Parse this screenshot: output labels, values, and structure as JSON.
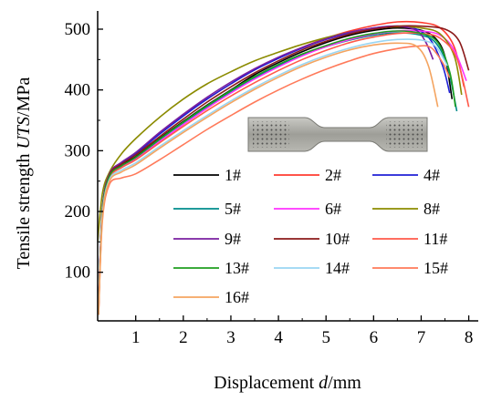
{
  "chart_data": {
    "type": "line",
    "title": "",
    "xlabel": {
      "prefix": "Displacement ",
      "italic": "d",
      "suffix": "/mm"
    },
    "ylabel": {
      "prefix": "Tensile strength ",
      "italic": "UTS",
      "suffix": "/MPa"
    },
    "xlim": [
      0.2,
      8.2
    ],
    "ylim": [
      20,
      530
    ],
    "xticks": [
      1,
      2,
      3,
      4,
      5,
      6,
      7,
      8
    ],
    "yticks": [
      100,
      200,
      300,
      400,
      500
    ],
    "grid": false,
    "legend_position": "center-right",
    "series": [
      {
        "name": "1#",
        "color": "#000000",
        "points": [
          [
            0.22,
            40
          ],
          [
            0.3,
            200
          ],
          [
            0.45,
            260
          ],
          [
            0.7,
            277
          ],
          [
            1,
            290
          ],
          [
            1.5,
            320
          ],
          [
            2,
            348
          ],
          [
            2.5,
            375
          ],
          [
            3,
            400
          ],
          [
            3.5,
            425
          ],
          [
            4,
            445
          ],
          [
            4.5,
            463
          ],
          [
            5,
            478
          ],
          [
            5.5,
            490
          ],
          [
            6,
            498
          ],
          [
            6.5,
            502
          ],
          [
            7,
            498
          ],
          [
            7.3,
            485
          ],
          [
            7.5,
            455
          ],
          [
            7.65,
            385
          ]
        ]
      },
      {
        "name": "2#",
        "color": "#ff3b30",
        "points": [
          [
            0.22,
            35
          ],
          [
            0.3,
            195
          ],
          [
            0.45,
            262
          ],
          [
            0.7,
            280
          ],
          [
            1,
            295
          ],
          [
            1.5,
            328
          ],
          [
            2,
            358
          ],
          [
            2.5,
            385
          ],
          [
            3,
            410
          ],
          [
            3.5,
            433
          ],
          [
            4,
            453
          ],
          [
            4.5,
            470
          ],
          [
            5,
            485
          ],
          [
            5.5,
            497
          ],
          [
            6,
            506
          ],
          [
            6.5,
            512
          ],
          [
            7,
            511
          ],
          [
            7.4,
            502
          ],
          [
            7.7,
            470
          ],
          [
            7.9,
            405
          ]
        ]
      },
      {
        "name": "4#",
        "color": "#1f1fd6",
        "points": [
          [
            0.22,
            45
          ],
          [
            0.3,
            205
          ],
          [
            0.45,
            262
          ],
          [
            0.7,
            280
          ],
          [
            1,
            295
          ],
          [
            1.5,
            327
          ],
          [
            2,
            357
          ],
          [
            2.5,
            385
          ],
          [
            3,
            410
          ],
          [
            3.5,
            433
          ],
          [
            4,
            452
          ],
          [
            4.5,
            469
          ],
          [
            5,
            483
          ],
          [
            5.5,
            494
          ],
          [
            6,
            502
          ],
          [
            6.5,
            505
          ],
          [
            6.9,
            500
          ],
          [
            7.2,
            482
          ],
          [
            7.45,
            440
          ],
          [
            7.6,
            395
          ]
        ]
      },
      {
        "name": "5#",
        "color": "#008b8b",
        "points": [
          [
            0.22,
            40
          ],
          [
            0.3,
            200
          ],
          [
            0.45,
            258
          ],
          [
            0.7,
            275
          ],
          [
            1,
            288
          ],
          [
            1.5,
            318
          ],
          [
            2,
            346
          ],
          [
            2.5,
            372
          ],
          [
            3,
            397
          ],
          [
            3.5,
            420
          ],
          [
            4,
            440
          ],
          [
            4.5,
            457
          ],
          [
            5,
            471
          ],
          [
            5.5,
            482
          ],
          [
            6,
            490
          ],
          [
            6.5,
            494
          ],
          [
            7,
            490
          ],
          [
            7.3,
            478
          ],
          [
            7.55,
            440
          ],
          [
            7.75,
            365
          ]
        ]
      },
      {
        "name": "6#",
        "color": "#ff33ff",
        "points": [
          [
            0.22,
            40
          ],
          [
            0.3,
            200
          ],
          [
            0.45,
            257
          ],
          [
            0.7,
            273
          ],
          [
            1,
            286
          ],
          [
            1.5,
            315
          ],
          [
            2,
            343
          ],
          [
            2.5,
            370
          ],
          [
            3,
            395
          ],
          [
            3.5,
            418
          ],
          [
            4,
            438
          ],
          [
            4.5,
            456
          ],
          [
            5,
            471
          ],
          [
            5.5,
            483
          ],
          [
            6,
            492
          ],
          [
            6.5,
            497
          ],
          [
            7,
            497
          ],
          [
            7.4,
            490
          ],
          [
            7.7,
            465
          ],
          [
            7.95,
            415
          ]
        ]
      },
      {
        "name": "8#",
        "color": "#8b8b00",
        "points": [
          [
            0.2,
            150
          ],
          [
            0.3,
            230
          ],
          [
            0.45,
            265
          ],
          [
            0.7,
            295
          ],
          [
            1,
            320
          ],
          [
            1.5,
            355
          ],
          [
            2,
            385
          ],
          [
            2.5,
            410
          ],
          [
            3,
            430
          ],
          [
            3.5,
            448
          ],
          [
            4,
            462
          ],
          [
            4.5,
            475
          ],
          [
            5,
            486
          ],
          [
            5.5,
            495
          ],
          [
            6,
            501
          ],
          [
            6.5,
            504
          ],
          [
            7,
            502
          ],
          [
            7.4,
            492
          ],
          [
            7.7,
            455
          ],
          [
            7.85,
            392
          ]
        ]
      },
      {
        "name": "9#",
        "color": "#7a1fa0",
        "points": [
          [
            0.22,
            45
          ],
          [
            0.3,
            205
          ],
          [
            0.45,
            262
          ],
          [
            0.7,
            281
          ],
          [
            1,
            297
          ],
          [
            1.5,
            330
          ],
          [
            2,
            360
          ],
          [
            2.5,
            388
          ],
          [
            3,
            413
          ],
          [
            3.5,
            435
          ],
          [
            4,
            454
          ],
          [
            4.5,
            470
          ],
          [
            5,
            484
          ],
          [
            5.5,
            495
          ],
          [
            6,
            502
          ],
          [
            6.5,
            505
          ],
          [
            6.9,
            498
          ],
          [
            7.1,
            478
          ],
          [
            7.25,
            450
          ]
        ]
      },
      {
        "name": "10#",
        "color": "#8b1a1a",
        "points": [
          [
            0.22,
            40
          ],
          [
            0.3,
            200
          ],
          [
            0.45,
            260
          ],
          [
            0.7,
            278
          ],
          [
            1,
            293
          ],
          [
            1.5,
            323
          ],
          [
            2,
            352
          ],
          [
            2.5,
            380
          ],
          [
            3,
            405
          ],
          [
            3.5,
            428
          ],
          [
            4,
            448
          ],
          [
            4.5,
            466
          ],
          [
            5,
            480
          ],
          [
            5.5,
            492
          ],
          [
            6,
            500
          ],
          [
            6.5,
            505
          ],
          [
            7,
            505
          ],
          [
            7.5,
            500
          ],
          [
            7.8,
            480
          ],
          [
            8,
            432
          ]
        ]
      },
      {
        "name": "11#",
        "color": "#ff5a4a",
        "points": [
          [
            0.22,
            35
          ],
          [
            0.3,
            195
          ],
          [
            0.45,
            255
          ],
          [
            0.7,
            272
          ],
          [
            1,
            285
          ],
          [
            1.5,
            313
          ],
          [
            2,
            340
          ],
          [
            2.5,
            366
          ],
          [
            3,
            390
          ],
          [
            3.5,
            412
          ],
          [
            4,
            432
          ],
          [
            4.5,
            450
          ],
          [
            5,
            465
          ],
          [
            5.5,
            478
          ],
          [
            6,
            487
          ],
          [
            6.5,
            493
          ],
          [
            7,
            493
          ],
          [
            7.4,
            485
          ],
          [
            7.75,
            452
          ],
          [
            8,
            372
          ]
        ]
      },
      {
        "name": "13#",
        "color": "#1f9e1f",
        "points": [
          [
            0.22,
            40
          ],
          [
            0.3,
            200
          ],
          [
            0.45,
            258
          ],
          [
            0.7,
            275
          ],
          [
            1,
            289
          ],
          [
            1.5,
            319
          ],
          [
            2,
            347
          ],
          [
            2.5,
            374
          ],
          [
            3,
            399
          ],
          [
            3.5,
            422
          ],
          [
            4,
            442
          ],
          [
            4.5,
            459
          ],
          [
            5,
            473
          ],
          [
            5.5,
            485
          ],
          [
            6,
            493
          ],
          [
            6.5,
            497
          ],
          [
            7,
            493
          ],
          [
            7.35,
            478
          ],
          [
            7.6,
            430
          ],
          [
            7.72,
            372
          ]
        ]
      },
      {
        "name": "14#",
        "color": "#9ad6f2",
        "points": [
          [
            0.22,
            40
          ],
          [
            0.3,
            195
          ],
          [
            0.45,
            253
          ],
          [
            0.7,
            268
          ],
          [
            1,
            280
          ],
          [
            1.5,
            307
          ],
          [
            2,
            333
          ],
          [
            2.5,
            358
          ],
          [
            3,
            382
          ],
          [
            3.5,
            404
          ],
          [
            4,
            424
          ],
          [
            4.5,
            442
          ],
          [
            5,
            457
          ],
          [
            5.5,
            469
          ],
          [
            6,
            478
          ],
          [
            6.5,
            483
          ],
          [
            7,
            482
          ],
          [
            7.3,
            472
          ],
          [
            7.55,
            440
          ]
        ]
      },
      {
        "name": "15#",
        "color": "#ff7a5a",
        "points": [
          [
            0.22,
            30
          ],
          [
            0.3,
            185
          ],
          [
            0.45,
            245
          ],
          [
            0.7,
            255
          ],
          [
            1,
            262
          ],
          [
            1.5,
            285
          ],
          [
            2,
            310
          ],
          [
            2.5,
            335
          ],
          [
            3,
            358
          ],
          [
            3.5,
            380
          ],
          [
            4,
            400
          ],
          [
            4.5,
            418
          ],
          [
            5,
            434
          ],
          [
            5.5,
            448
          ],
          [
            6,
            460
          ],
          [
            6.5,
            468
          ],
          [
            6.9,
            472
          ],
          [
            7.2,
            470
          ],
          [
            7.45,
            445
          ],
          [
            7.6,
            420
          ]
        ]
      },
      {
        "name": "16#",
        "color": "#f4a460",
        "points": [
          [
            0.22,
            30
          ],
          [
            0.3,
            190
          ],
          [
            0.45,
            250
          ],
          [
            0.7,
            265
          ],
          [
            1,
            277
          ],
          [
            1.5,
            304
          ],
          [
            2,
            330
          ],
          [
            2.5,
            355
          ],
          [
            3,
            379
          ],
          [
            3.5,
            401
          ],
          [
            4,
            421
          ],
          [
            4.5,
            439
          ],
          [
            5,
            454
          ],
          [
            5.5,
            466
          ],
          [
            6,
            474
          ],
          [
            6.5,
            477
          ],
          [
            6.9,
            472
          ],
          [
            7.15,
            440
          ],
          [
            7.35,
            372
          ]
        ]
      }
    ]
  }
}
